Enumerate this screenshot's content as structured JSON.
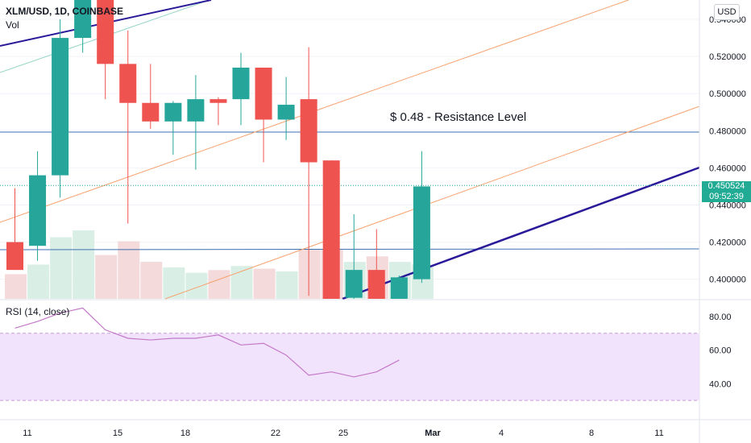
{
  "header": {
    "symbol": "XLM/USD, 1D, COINBASE",
    "volume_label": "Vol",
    "currency_button": "USD",
    "rsi_label": "RSI (14, close)"
  },
  "annotation": "$ 0.48 - Resistance Level",
  "last_price": {
    "value": "0.450524",
    "countdown": "09:52:39"
  },
  "colors": {
    "up": "#26a69a",
    "down": "#ef5350",
    "up_volume": "#d9efe6",
    "down_volume": "#f4dada",
    "channel": "#f7a26e",
    "trendline": "#2a1a99",
    "hline": "#3f6fb3",
    "rsi_line": "#c478c9",
    "rsi_band": "#f1e3fb",
    "teal_line": "#94d6c6"
  },
  "chart_data": {
    "type": "candlestick",
    "y_axis": {
      "range": [
        0.389,
        0.55
      ],
      "ticks": [
        "0.540000",
        "0.520000",
        "0.500000",
        "0.480000",
        "0.460000",
        "0.440000",
        "0.420000",
        "0.400000"
      ]
    },
    "x_axis": {
      "ticks": [
        "11",
        "15",
        "18",
        "22",
        "25",
        "Mar",
        "4",
        "8",
        "11"
      ]
    },
    "candles": [
      {
        "o": 0.42,
        "h": 0.449,
        "l": 0.405,
        "c": 0.405
      },
      {
        "o": 0.418,
        "h": 0.469,
        "l": 0.41,
        "c": 0.456
      },
      {
        "o": 0.456,
        "h": 0.54,
        "l": 0.444,
        "c": 0.53
      },
      {
        "o": 0.53,
        "h": 0.561,
        "l": 0.522,
        "c": 0.56
      },
      {
        "o": 0.56,
        "h": 0.56,
        "l": 0.497,
        "c": 0.516
      },
      {
        "o": 0.516,
        "h": 0.534,
        "l": 0.43,
        "c": 0.495
      },
      {
        "o": 0.495,
        "h": 0.516,
        "l": 0.481,
        "c": 0.485
      },
      {
        "o": 0.485,
        "h": 0.496,
        "l": 0.467,
        "c": 0.495
      },
      {
        "o": 0.485,
        "h": 0.51,
        "l": 0.459,
        "c": 0.497
      },
      {
        "o": 0.497,
        "h": 0.498,
        "l": 0.483,
        "c": 0.495
      },
      {
        "o": 0.497,
        "h": 0.522,
        "l": 0.483,
        "c": 0.514
      },
      {
        "o": 0.514,
        "h": 0.514,
        "l": 0.463,
        "c": 0.486
      },
      {
        "o": 0.486,
        "h": 0.509,
        "l": 0.475,
        "c": 0.494
      },
      {
        "o": 0.497,
        "h": 0.525,
        "l": 0.391,
        "c": 0.463
      },
      {
        "o": 0.464,
        "h": 0.464,
        "l": 0.389,
        "c": 0.389
      },
      {
        "o": 0.39,
        "h": 0.435,
        "l": 0.386,
        "c": 0.405
      },
      {
        "o": 0.405,
        "h": 0.427,
        "l": 0.384,
        "c": 0.389
      },
      {
        "o": 0.389,
        "h": 0.402,
        "l": 0.389,
        "c": 0.401
      },
      {
        "o": 0.4,
        "h": 0.469,
        "l": 0.398,
        "c": 0.45
      }
    ],
    "volume": [
      18,
      25,
      45,
      50,
      32,
      42,
      27,
      23,
      19,
      21,
      24,
      22,
      20,
      36,
      36,
      27,
      31,
      27,
      25
    ],
    "rsi": {
      "ticks": [
        "80.00",
        "60.00",
        "40.00"
      ],
      "levels": [
        70,
        30
      ],
      "values": [
        73,
        77,
        82,
        85,
        72,
        67,
        66,
        67,
        67,
        69,
        63,
        64,
        57,
        45,
        47,
        44,
        47,
        54
      ]
    }
  }
}
